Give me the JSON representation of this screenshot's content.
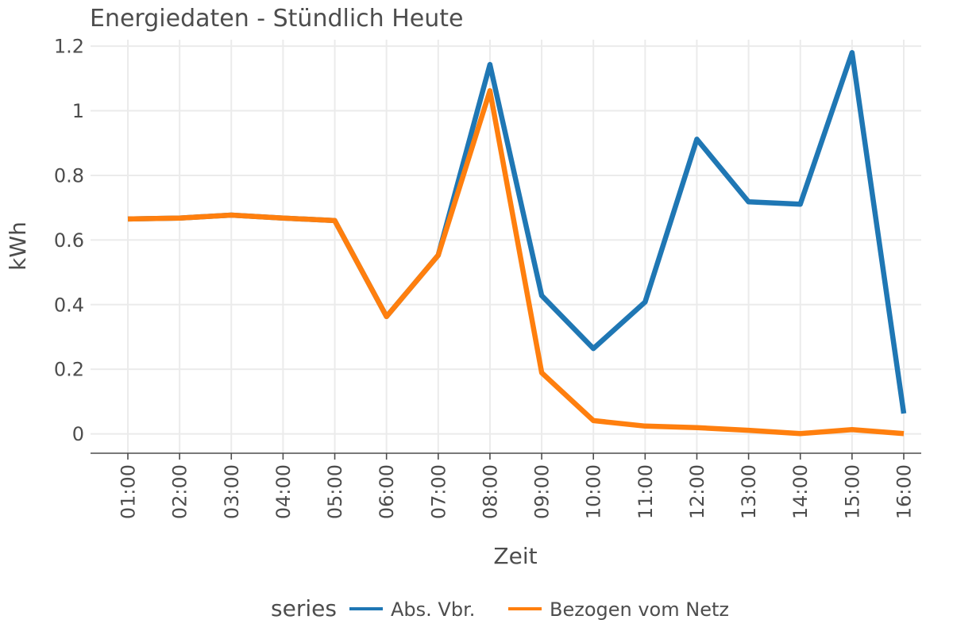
{
  "chart_data": {
    "type": "line",
    "title": "Energiedaten - Stündlich Heute",
    "xlabel": "Zeit",
    "ylabel": "kWh",
    "categories": [
      "01:00",
      "02:00",
      "03:00",
      "04:00",
      "05:00",
      "06:00",
      "07:00",
      "08:00",
      "09:00",
      "10:00",
      "11:00",
      "12:00",
      "13:00",
      "14:00",
      "15:00",
      "16:00"
    ],
    "ylim": [
      -0.06,
      1.22
    ],
    "yticks": [
      0,
      0.2,
      0.4,
      0.6,
      0.8,
      1,
      1.2
    ],
    "ytick_labels": [
      "0",
      "0.2",
      "0.4",
      "0.6",
      "0.8",
      "1",
      "1.2"
    ],
    "grid": true,
    "legend": {
      "title": "series",
      "position": "bottom"
    },
    "series": [
      {
        "name": "Abs. Vbr.",
        "color": "#1f77b4",
        "values": [
          0.665,
          0.668,
          0.677,
          0.668,
          0.66,
          0.363,
          0.553,
          1.143,
          0.428,
          0.264,
          0.408,
          0.912,
          0.718,
          0.711,
          1.18,
          0.063
        ]
      },
      {
        "name": "Bezogen vom Netz",
        "color": "#ff7f0e",
        "values": [
          0.665,
          0.668,
          0.677,
          0.668,
          0.66,
          0.363,
          0.553,
          1.062,
          0.189,
          0.041,
          0.024,
          0.019,
          0.011,
          0.001,
          0.013,
          0.001
        ]
      }
    ]
  }
}
